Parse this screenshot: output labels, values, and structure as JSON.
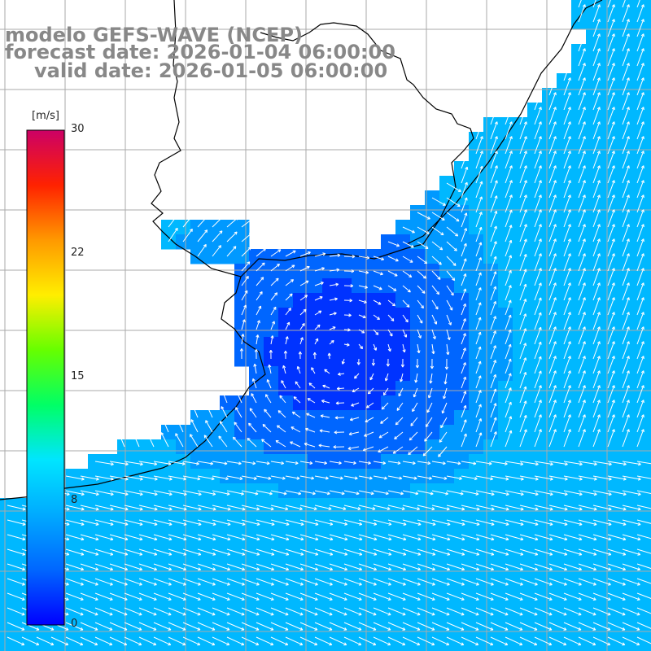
{
  "header": {
    "line1": "modelo GEFS-WAVE (NCEP)",
    "line2": "forecast date: 2026-01-04 06:00:00",
    "line3": "valid date: 2026-01-05 06:00:00"
  },
  "colorbar": {
    "unit": "m/s",
    "ticks": [
      "30",
      "22",
      "15",
      "8",
      "0"
    ],
    "tick_values": [
      30,
      22,
      15,
      8,
      0
    ],
    "min": 0,
    "max": 30,
    "colors": [
      "#0000ff",
      "#0066ff",
      "#00aaff",
      "#00e5ff",
      "#00ff66",
      "#66ff00",
      "#ffee00",
      "#ff9900",
      "#ff2200",
      "#cc0066"
    ]
  },
  "map": {
    "land_color": "#ffffff",
    "grid_color": "#aaaaaa",
    "coast_color": "#000000",
    "arrow_color": "#ffffff",
    "field_colors": {
      "calm": "#0033ff",
      "light": "#0066ff",
      "moderate": "#0099ff",
      "fresh": "#00b8ff"
    }
  }
}
